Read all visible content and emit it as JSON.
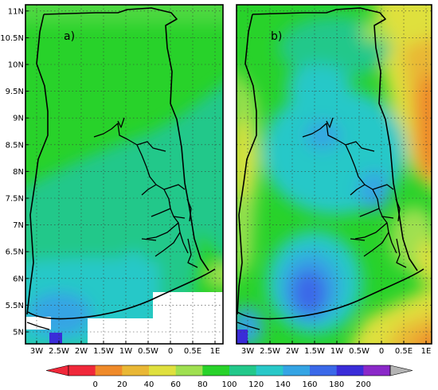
{
  "panels": [
    {
      "label": "a)"
    },
    {
      "label": "b)"
    }
  ],
  "axes": {
    "lat_ticks": [
      "5N",
      "5.5N",
      "6N",
      "6.5N",
      "7N",
      "7.5N",
      "8N",
      "8.5N",
      "9N",
      "9.5N",
      "10N",
      "10.5N",
      "11N"
    ],
    "lon_ticks": [
      "3W",
      "2.5W",
      "2W",
      "1.5W",
      "1W",
      "0.5W",
      "0",
      "0.5E",
      "1E"
    ]
  },
  "colorbar": {
    "ticks": [
      "0",
      "20",
      "40",
      "60",
      "80",
      "100",
      "120",
      "140",
      "160",
      "180",
      "200"
    ],
    "colors": [
      "#f0283a",
      "#ef8a2a",
      "#e9b735",
      "#dfe03e",
      "#9fe050",
      "#28d22a",
      "#22c88a",
      "#28c8c8",
      "#34a4e4",
      "#3a68e8",
      "#3a2cd8",
      "#8a28c8"
    ],
    "under_color": "#f0283a",
    "over_color": "#b4b4b4"
  }
}
